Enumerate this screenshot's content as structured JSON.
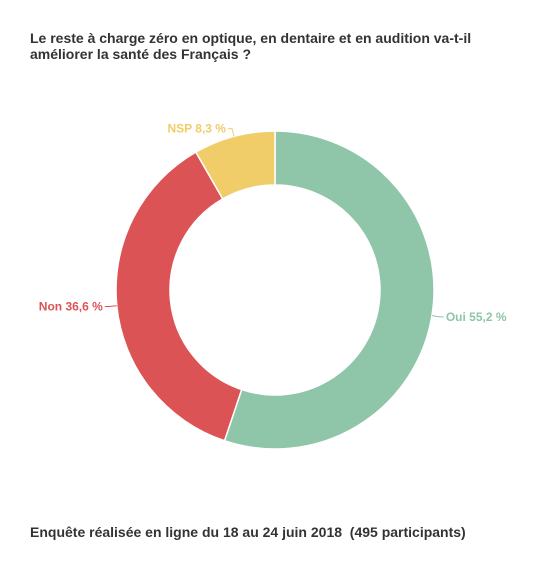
{
  "title": "Le reste à charge zéro en optique, en dentaire et en audition va-t-il améliorer la santé des Français ?",
  "caption": "Enquête réalisée en ligne du 18 au 24 juin 2018  (495 participants)",
  "chart_data": {
    "type": "pie",
    "variant": "donut",
    "title": "Le reste à charge zéro en optique, en dentaire et en audition va-t-il améliorer la santé des Français ?",
    "categories": [
      "Oui",
      "Non",
      "NSP"
    ],
    "values": [
      55.2,
      36.6,
      8.3
    ],
    "labels": [
      "Oui 55,2 %",
      "Non 36,6 %",
      "NSP 8,3 %"
    ],
    "colors": [
      "#8fc5a8",
      "#dc5356",
      "#f0cd68"
    ],
    "unit": "%"
  }
}
